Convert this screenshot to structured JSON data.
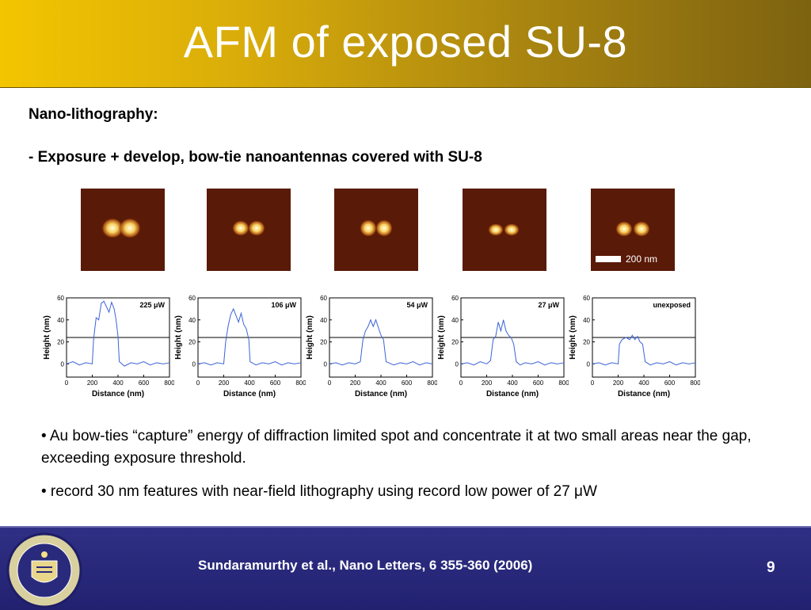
{
  "slide": {
    "title": "AFM of exposed SU-8",
    "subtitle": "Nano-lithography:",
    "line": "- Exposure + develop, bow-tie nanoantennas covered with SU-8",
    "bullets": [
      "• Au bow-ties “capture” energy of diffraction limited spot and concentrate it at two small areas near the gap, exceeding exposure threshold.",
      "• record 30 nm features with near-field lithography using record low power of 27 μW"
    ],
    "citation": "Sundaramurthy et al., Nano Letters, 6 355-360 (2006)",
    "page_number": "9",
    "scale_bar_label": "200 nm"
  },
  "colors": {
    "title_gradient_start": "#f3c500",
    "title_gradient_end": "#7d6210",
    "footer": "#2a2a7c",
    "trace": "#3b63d6",
    "afm_background": "#5a1a08"
  },
  "chart_data": [
    {
      "type": "line",
      "label": "225 μW",
      "xlabel": "Distance (nm)",
      "ylabel": "Height (nm)",
      "xlim": [
        0,
        800
      ],
      "ylim": [
        0,
        60
      ],
      "xticks": [
        "0",
        "200",
        "400",
        "600",
        "800"
      ],
      "yticks": [
        "0",
        "20",
        "40",
        "60"
      ],
      "threshold": 24,
      "x": [
        0,
        50,
        100,
        150,
        200,
        210,
        230,
        250,
        270,
        290,
        310,
        330,
        350,
        370,
        385,
        400,
        410,
        450,
        500,
        550,
        600,
        650,
        700,
        750,
        800
      ],
      "y": [
        0,
        2,
        -1,
        1,
        0,
        22,
        42,
        40,
        55,
        57,
        52,
        47,
        56,
        50,
        40,
        25,
        2,
        -2,
        1,
        0,
        2,
        -1,
        1,
        0,
        1
      ]
    },
    {
      "type": "line",
      "label": "106 μW",
      "xlabel": "Distance (nm)",
      "ylabel": "Height (nm)",
      "xlim": [
        0,
        800
      ],
      "ylim": [
        0,
        60
      ],
      "xticks": [
        "0",
        "200",
        "400",
        "600",
        "800"
      ],
      "yticks": [
        "0",
        "20",
        "40",
        "60"
      ],
      "threshold": 24,
      "x": [
        0,
        50,
        100,
        150,
        200,
        215,
        235,
        255,
        275,
        295,
        315,
        335,
        355,
        375,
        395,
        405,
        450,
        500,
        550,
        600,
        650,
        700,
        750,
        800
      ],
      "y": [
        0,
        1,
        -1,
        1,
        0,
        20,
        35,
        45,
        50,
        44,
        38,
        46,
        36,
        32,
        22,
        2,
        -1,
        1,
        0,
        2,
        -1,
        1,
        0,
        1
      ]
    },
    {
      "type": "line",
      "label": "54 μW",
      "xlabel": "Distance (nm)",
      "ylabel": "Height (nm)",
      "xlim": [
        0,
        800
      ],
      "ylim": [
        0,
        60
      ],
      "xticks": [
        "0",
        "200",
        "400",
        "600",
        "800"
      ],
      "yticks": [
        "0",
        "20",
        "40",
        "60"
      ],
      "threshold": 24,
      "x": [
        0,
        50,
        100,
        150,
        200,
        240,
        260,
        280,
        300,
        320,
        340,
        360,
        380,
        400,
        420,
        440,
        500,
        550,
        600,
        650,
        700,
        750,
        800
      ],
      "y": [
        0,
        1,
        -1,
        1,
        0,
        2,
        22,
        30,
        34,
        40,
        34,
        40,
        33,
        26,
        22,
        2,
        -1,
        1,
        0,
        2,
        -1,
        1,
        0
      ]
    },
    {
      "type": "line",
      "label": "27 μW",
      "xlabel": "Distance (nm)",
      "ylabel": "Height (nm)",
      "xlim": [
        0,
        800
      ],
      "ylim": [
        0,
        60
      ],
      "xticks": [
        "0",
        "200",
        "400",
        "600",
        "800"
      ],
      "yticks": [
        "0",
        "20",
        "40",
        "60"
      ],
      "threshold": 24,
      "x": [
        0,
        50,
        100,
        150,
        200,
        230,
        250,
        270,
        290,
        310,
        330,
        350,
        370,
        390,
        410,
        430,
        460,
        500,
        550,
        600,
        650,
        700,
        750,
        800
      ],
      "y": [
        0,
        1,
        -1,
        2,
        0,
        3,
        22,
        25,
        38,
        30,
        40,
        30,
        26,
        24,
        18,
        2,
        -1,
        1,
        0,
        2,
        -1,
        1,
        0,
        1
      ]
    },
    {
      "type": "line",
      "label": "unexposed",
      "xlabel": "Distance (nm)",
      "ylabel": "Height (nm)",
      "xlim": [
        0,
        800
      ],
      "ylim": [
        0,
        60
      ],
      "xticks": [
        "0",
        "200",
        "400",
        "600",
        "800"
      ],
      "yticks": [
        "0",
        "20",
        "40",
        "60"
      ],
      "threshold": 24,
      "x": [
        0,
        50,
        100,
        150,
        200,
        210,
        230,
        260,
        290,
        310,
        330,
        350,
        370,
        390,
        410,
        450,
        500,
        550,
        600,
        650,
        700,
        750,
        800
      ],
      "y": [
        0,
        1,
        -1,
        1,
        0,
        18,
        22,
        24,
        22,
        26,
        22,
        25,
        20,
        18,
        2,
        -1,
        1,
        0,
        2,
        -1,
        1,
        0,
        1
      ]
    }
  ]
}
